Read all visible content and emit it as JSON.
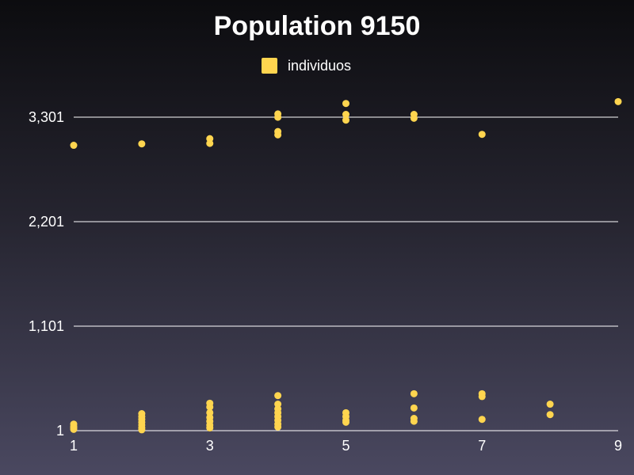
{
  "chart_data": {
    "type": "scatter",
    "title": "Population 9150",
    "xlabel": "",
    "ylabel": "",
    "xlim": [
      1,
      9
    ],
    "ylim": [
      1,
      3301
    ],
    "x_ticks": [
      1,
      3,
      5,
      7,
      9
    ],
    "x_tick_labels": [
      "1",
      "3",
      "5",
      "7",
      "9"
    ],
    "y_ticks": [
      1,
      1101,
      2201,
      3301
    ],
    "y_tick_labels": [
      "1",
      "1,101",
      "2,201",
      "3,301"
    ],
    "grid": "horizontal",
    "legend_position": "top-center",
    "series": [
      {
        "name": "individuos",
        "color": "#ffd54f",
        "points": [
          [
            1,
            3005
          ],
          [
            1,
            70
          ],
          [
            1,
            45
          ],
          [
            1,
            30
          ],
          [
            1,
            15
          ],
          [
            2,
            3020
          ],
          [
            2,
            180
          ],
          [
            2,
            150
          ],
          [
            2,
            120
          ],
          [
            2,
            90
          ],
          [
            2,
            60
          ],
          [
            2,
            30
          ],
          [
            2,
            10
          ],
          [
            3,
            3075
          ],
          [
            3,
            3025
          ],
          [
            3,
            290
          ],
          [
            3,
            250
          ],
          [
            3,
            190
          ],
          [
            3,
            140
          ],
          [
            3,
            100
          ],
          [
            3,
            60
          ],
          [
            3,
            30
          ],
          [
            4,
            3335
          ],
          [
            4,
            3300
          ],
          [
            4,
            3150
          ],
          [
            4,
            3115
          ],
          [
            4,
            370
          ],
          [
            4,
            280
          ],
          [
            4,
            230
          ],
          [
            4,
            190
          ],
          [
            4,
            150
          ],
          [
            4,
            110
          ],
          [
            4,
            70
          ],
          [
            4,
            40
          ],
          [
            5,
            3445
          ],
          [
            5,
            3330
          ],
          [
            5,
            3270
          ],
          [
            5,
            190
          ],
          [
            5,
            150
          ],
          [
            5,
            110
          ],
          [
            5,
            90
          ],
          [
            6,
            3330
          ],
          [
            6,
            3290
          ],
          [
            6,
            390
          ],
          [
            6,
            240
          ],
          [
            6,
            130
          ],
          [
            6,
            100
          ],
          [
            7,
            3120
          ],
          [
            7,
            390
          ],
          [
            7,
            360
          ],
          [
            7,
            120
          ],
          [
            8,
            280
          ],
          [
            8,
            170
          ],
          [
            9,
            3465
          ]
        ]
      }
    ]
  }
}
